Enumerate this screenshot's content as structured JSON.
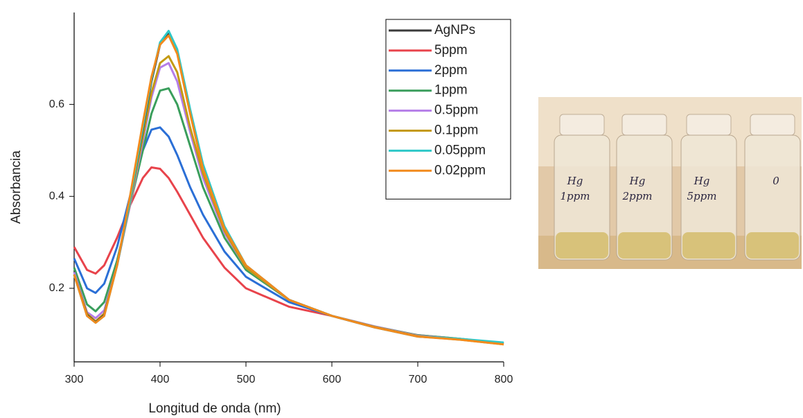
{
  "chart_data": {
    "type": "line",
    "x_label": "Longitud de onda (nm)",
    "y_label": "Absorbancia",
    "x": [
      300,
      315,
      325,
      335,
      350,
      365,
      380,
      390,
      400,
      410,
      420,
      435,
      450,
      475,
      500,
      550,
      600,
      650,
      700,
      750,
      800
    ],
    "xlim": [
      300,
      800
    ],
    "xticks": [
      300,
      400,
      500,
      600,
      700,
      800
    ],
    "ylim": [
      0.04,
      0.8
    ],
    "yticks": [
      0.2,
      0.4,
      0.6
    ],
    "legend": "upper right",
    "series": [
      {
        "name": "AgNPs",
        "color": "#3a3a3a",
        "values": [
          0.23,
          0.142,
          0.126,
          0.142,
          0.25,
          0.39,
          0.545,
          0.65,
          0.73,
          0.755,
          0.715,
          0.585,
          0.465,
          0.333,
          0.25,
          0.175,
          0.14,
          0.115,
          0.095,
          0.089,
          0.08
        ]
      },
      {
        "name": "5ppm",
        "color": "#e8434b",
        "values": [
          0.29,
          0.24,
          0.232,
          0.25,
          0.31,
          0.38,
          0.44,
          0.463,
          0.46,
          0.44,
          0.41,
          0.36,
          0.31,
          0.245,
          0.2,
          0.16,
          0.14,
          0.115,
          0.098,
          0.09,
          0.08
        ]
      },
      {
        "name": "2ppm",
        "color": "#2b6fd6",
        "values": [
          0.265,
          0.2,
          0.19,
          0.21,
          0.29,
          0.4,
          0.5,
          0.545,
          0.55,
          0.53,
          0.49,
          0.42,
          0.36,
          0.28,
          0.225,
          0.17,
          0.14,
          0.115,
          0.097,
          0.089,
          0.08
        ]
      },
      {
        "name": "1ppm",
        "color": "#3a9e5c",
        "values": [
          0.245,
          0.165,
          0.15,
          0.17,
          0.26,
          0.38,
          0.5,
          0.58,
          0.63,
          0.635,
          0.6,
          0.51,
          0.42,
          0.31,
          0.24,
          0.175,
          0.14,
          0.117,
          0.098,
          0.09,
          0.08
        ]
      },
      {
        "name": "0.5ppm",
        "color": "#b57ee8",
        "values": [
          0.235,
          0.148,
          0.135,
          0.152,
          0.25,
          0.38,
          0.52,
          0.615,
          0.68,
          0.69,
          0.65,
          0.54,
          0.44,
          0.32,
          0.245,
          0.175,
          0.14,
          0.117,
          0.097,
          0.089,
          0.079
        ]
      },
      {
        "name": "0.1ppm",
        "color": "#c49a12",
        "values": [
          0.23,
          0.145,
          0.128,
          0.145,
          0.25,
          0.385,
          0.53,
          0.625,
          0.69,
          0.705,
          0.67,
          0.55,
          0.45,
          0.325,
          0.245,
          0.175,
          0.14,
          0.116,
          0.096,
          0.088,
          0.078
        ]
      },
      {
        "name": "0.05ppm",
        "color": "#2ec8c8",
        "values": [
          0.23,
          0.14,
          0.125,
          0.14,
          0.25,
          0.39,
          0.55,
          0.655,
          0.735,
          0.76,
          0.72,
          0.59,
          0.47,
          0.335,
          0.25,
          0.175,
          0.14,
          0.115,
          0.095,
          0.09,
          0.082
        ]
      },
      {
        "name": "0.02ppm",
        "color": "#f28a1c",
        "values": [
          0.23,
          0.14,
          0.125,
          0.14,
          0.25,
          0.4,
          0.56,
          0.66,
          0.73,
          0.75,
          0.71,
          0.58,
          0.46,
          0.33,
          0.25,
          0.175,
          0.14,
          0.115,
          0.095,
          0.088,
          0.078
        ]
      }
    ]
  },
  "photo": {
    "labels": [
      [
        "Hg",
        "1ppm"
      ],
      [
        "Hg",
        "2ppm"
      ],
      [
        "Hg",
        "5ppm"
      ],
      [
        "0"
      ]
    ]
  }
}
